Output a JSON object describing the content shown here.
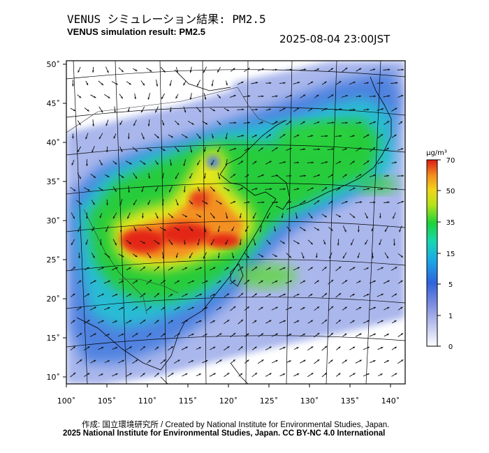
{
  "header": {
    "title_jp": "VENUS シミュレーション結果: PM2.5",
    "title_en": "VENUS simulation result: PM2.5",
    "timestamp": "2025-08-04 23:00JST"
  },
  "map": {
    "lon_ticks": [
      "100˚",
      "105˚",
      "110˚",
      "115˚",
      "120˚",
      "125˚",
      "130˚",
      "135˚",
      "140˚"
    ],
    "lat_ticks": [
      "10˚",
      "15˚",
      "20˚",
      "25˚",
      "30˚",
      "35˚",
      "40˚",
      "45˚",
      "50˚"
    ]
  },
  "colorbar": {
    "unit": "µg/m³",
    "ticks": [
      "0",
      "1",
      "5",
      "15",
      "35",
      "50",
      "70"
    ],
    "colors": [
      "#ffffff",
      "#9aa6e6",
      "#2b5fd8",
      "#16c7d4",
      "#19d23a",
      "#d7e818",
      "#f39a1e",
      "#e22414"
    ]
  },
  "legend": {
    "credit_line1": "作成: 国立環境研究所 / Created by National Institute for Environmental Studies, Japan.",
    "credit_line2": "2025 National Institute for Environmental Studies, Japan. CC BY-NC 4.0 International"
  }
}
